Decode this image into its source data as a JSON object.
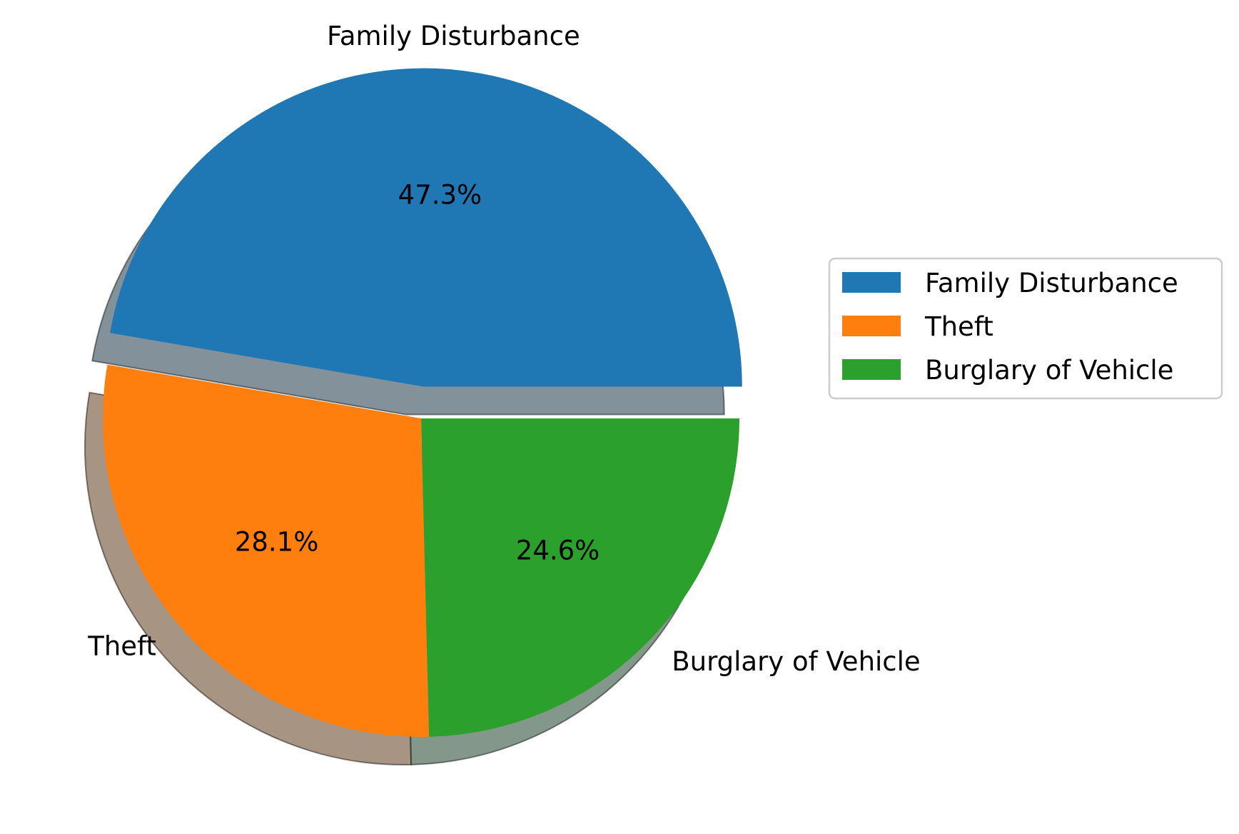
{
  "chart_data": {
    "type": "pie",
    "categories": [
      "Family Disturbance",
      "Theft",
      "Burglary of Vehicle"
    ],
    "values": [
      47.3,
      28.1,
      24.6
    ],
    "percent_labels": [
      "47.3%",
      "28.1%",
      "24.6%"
    ],
    "colors": [
      "#1f77b4",
      "#ff7f0e",
      "#2ca02c"
    ],
    "shadow_colors": [
      "#83919a",
      "#a79482",
      "#83978a"
    ],
    "explode": [
      0.1,
      0,
      0
    ],
    "shadow": true,
    "start_angle_deg": 0,
    "legend": {
      "entries": [
        "Family Disturbance",
        "Theft",
        "Burglary of Vehicle"
      ],
      "placement": "center-right"
    }
  }
}
